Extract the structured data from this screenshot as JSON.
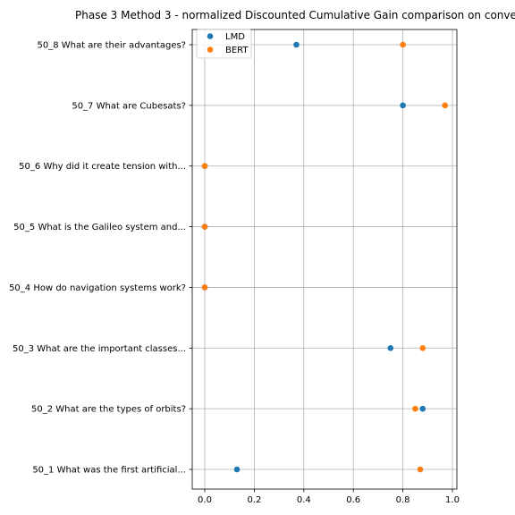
{
  "chart_data": {
    "type": "scatter",
    "title": "Phase 3 Method 3 - normalized Discounted Cumulative Gain comparison on conve",
    "xlabel": "",
    "ylabel": "",
    "xlim": [
      -0.05,
      1.02
    ],
    "xticks": [
      0.0,
      0.2,
      0.4,
      0.6,
      0.8,
      1.0
    ],
    "xtick_labels": [
      "0.0",
      "0.2",
      "0.4",
      "0.6",
      "0.8",
      "1.0"
    ],
    "grid": true,
    "legend_position": "top-left",
    "categories": [
      "50_1 What was the first artificial...",
      "50_2 What are the types of orbits?",
      "50_3 What are the important classes...",
      "50_4 How do navigation systems work?",
      "50_5 What is the Galileo system and...",
      "50_6 Why did it create tension with...",
      "50_7 What are Cubesats?",
      "50_8 What are their advantages?"
    ],
    "series": [
      {
        "name": "LMD",
        "color": "#1f77b4",
        "values": [
          0.13,
          0.88,
          0.75,
          0.0,
          0.0,
          0.0,
          0.8,
          0.37
        ]
      },
      {
        "name": "BERT",
        "color": "#ff7f0e",
        "values": [
          0.87,
          0.85,
          0.88,
          0.0,
          0.0,
          0.0,
          0.97,
          0.8
        ]
      }
    ]
  }
}
